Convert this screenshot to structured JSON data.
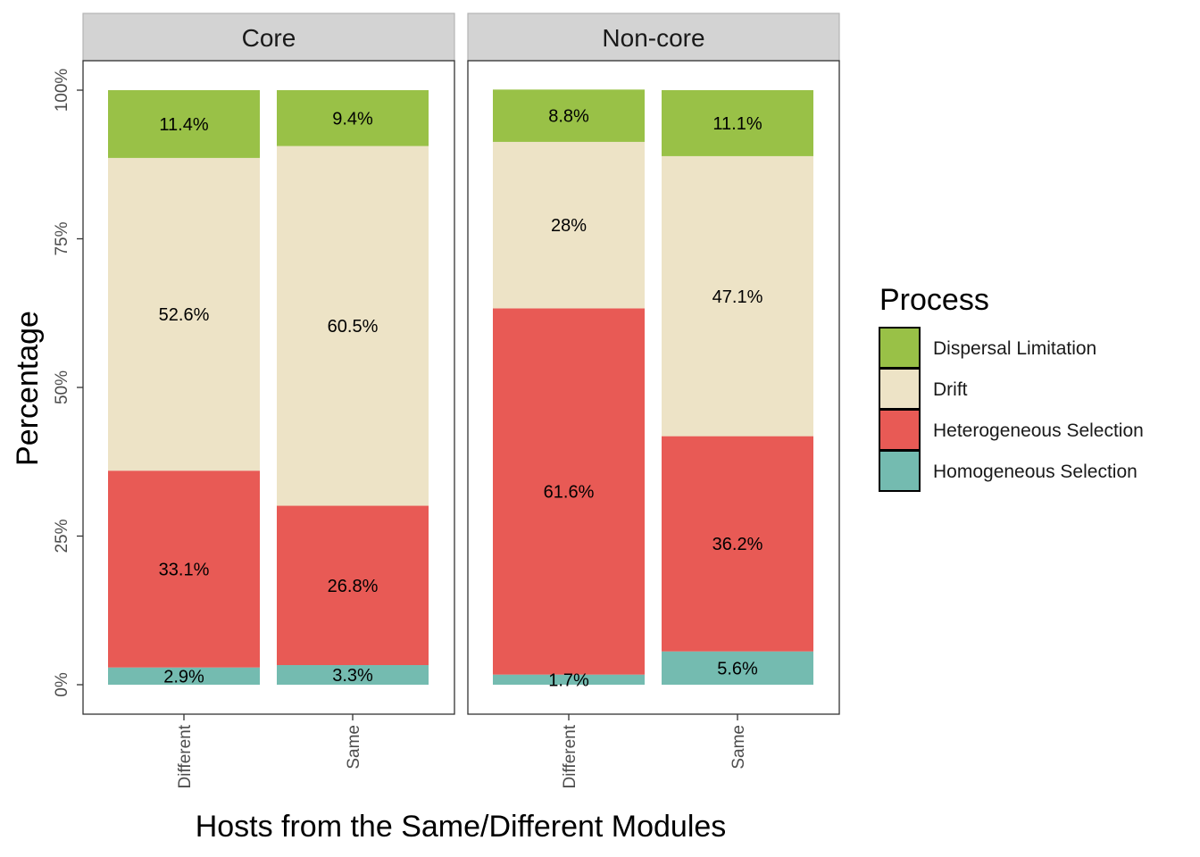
{
  "chart_data": {
    "type": "bar",
    "stacked": true,
    "facets": [
      "Core",
      "Non-core"
    ],
    "categories": [
      "Different",
      "Same"
    ],
    "xlabel": "Hosts from the Same/Different Modules",
    "ylabel": "Percentage",
    "ylim": [
      0,
      100
    ],
    "yticks": [
      "0%",
      "25%",
      "50%",
      "75%",
      "100%"
    ],
    "grid": false,
    "legend": {
      "title": "Process",
      "position": "right",
      "entries": [
        "Dispersal Limitation",
        "Drift",
        "Heterogeneous Selection",
        "Homogeneous Selection"
      ]
    },
    "colors": {
      "Homogeneous Selection": "#74bbb0",
      "Heterogeneous Selection": "#e85a55",
      "Drift": "#ede3c6",
      "Dispersal Limitation": "#99c147"
    },
    "series": [
      {
        "name": "Homogeneous Selection",
        "values": {
          "Core": [
            2.9,
            3.3
          ],
          "Non-core": [
            1.7,
            5.6
          ]
        },
        "labels": {
          "Core": [
            "2.9%",
            "3.3%"
          ],
          "Non-core": [
            "1.7%",
            "5.6%"
          ]
        }
      },
      {
        "name": "Heterogeneous Selection",
        "values": {
          "Core": [
            33.1,
            26.8
          ],
          "Non-core": [
            61.6,
            36.2
          ]
        },
        "labels": {
          "Core": [
            "33.1%",
            "26.8%"
          ],
          "Non-core": [
            "61.6%",
            "36.2%"
          ]
        }
      },
      {
        "name": "Drift",
        "values": {
          "Core": [
            52.6,
            60.5
          ],
          "Non-core": [
            28,
            47.1
          ]
        },
        "labels": {
          "Core": [
            "52.6%",
            "60.5%"
          ],
          "Non-core": [
            "28%",
            "47.1%"
          ]
        }
      },
      {
        "name": "Dispersal Limitation",
        "values": {
          "Core": [
            11.4,
            9.4
          ],
          "Non-core": [
            8.8,
            11.1
          ]
        },
        "labels": {
          "Core": [
            "11.4%",
            "9.4%"
          ],
          "Non-core": [
            "8.8%",
            "11.1%"
          ]
        }
      }
    ]
  }
}
